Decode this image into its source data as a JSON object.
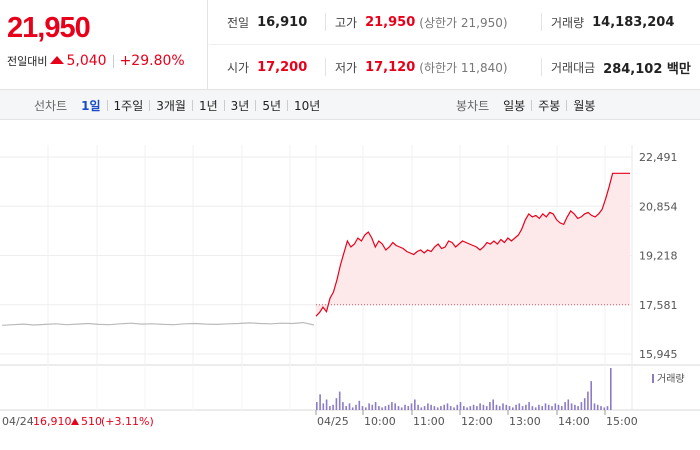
{
  "quote": {
    "price": "21,950",
    "change_label": "전일대비",
    "change_value": "5,040",
    "change_pct": "+29.80%"
  },
  "stats": {
    "prev_close": {
      "label": "전일",
      "value": "16,910"
    },
    "high": {
      "label": "고가",
      "value": "21,950",
      "sub": "(상한가 21,950)"
    },
    "volume": {
      "label": "거래량",
      "value": "14,183,204"
    },
    "open": {
      "label": "시가",
      "value": "17,200"
    },
    "low": {
      "label": "저가",
      "value": "17,120",
      "sub": "(하한가 11,840)"
    },
    "trade_value": {
      "label": "거래대금",
      "value": "284,102 백만"
    }
  },
  "tabs": {
    "line_label": "선차트",
    "line": [
      "1일",
      "1주일",
      "3개월",
      "1년",
      "3년",
      "5년",
      "10년"
    ],
    "active": "1일",
    "candle_label": "봉차트",
    "candle": [
      "일봉",
      "주봉",
      "월봉"
    ]
  },
  "chart_data": {
    "type": "line",
    "y_ticks": [
      "22,491",
      "20,854",
      "19,218",
      "17,581",
      "15,945"
    ],
    "ylim": [
      15945,
      22491
    ],
    "x_ticks": [
      "04/25",
      "10:00",
      "11:00",
      "12:00",
      "13:00",
      "14:00",
      "15:00"
    ],
    "prev_day_label": "04/24",
    "prev_day_close": "16,910",
    "prev_day_change": "510",
    "prev_day_pct": "(+3.11%)",
    "volume_legend": "거래량",
    "colors": {
      "today_line": "#e8001b",
      "today_fill": "#fde8ea",
      "prev_line": "#bbbbbb",
      "volume": "#8c7bc6"
    },
    "prev_day_series": [
      16900,
      16920,
      16940,
      16910,
      16930,
      16950,
      16920,
      16940,
      16960,
      16930,
      16920,
      16950,
      16970,
      16940,
      16950,
      16930,
      16920,
      16950,
      16960,
      16940,
      16930,
      16950,
      16960,
      16980,
      16960,
      16950,
      16970,
      16960,
      16990,
      16910
    ],
    "today_series": [
      17200,
      17320,
      17500,
      17350,
      17800,
      18000,
      18400,
      18900,
      19300,
      19700,
      19500,
      19600,
      19800,
      19700,
      19900,
      20000,
      19800,
      19500,
      19700,
      19600,
      19400,
      19500,
      19650,
      19550,
      19500,
      19450,
      19350,
      19300,
      19250,
      19350,
      19400,
      19300,
      19400,
      19350,
      19500,
      19600,
      19450,
      19500,
      19700,
      19650,
      19500,
      19600,
      19700,
      19650,
      19600,
      19550,
      19500,
      19400,
      19500,
      19650,
      19600,
      19700,
      19600,
      19750,
      19650,
      19800,
      19700,
      19800,
      19900,
      20100,
      20400,
      20600,
      20500,
      20550,
      20450,
      20600,
      20500,
      20650,
      20600,
      20400,
      20300,
      20250,
      20500,
      20700,
      20600,
      20450,
      20500,
      20600,
      20650,
      20550,
      20500,
      20600,
      20750,
      21100,
      21500,
      21950,
      21950,
      21950,
      21950,
      21950,
      21950
    ],
    "volume_series": [
      6,
      12,
      5,
      8,
      3,
      4,
      9,
      14,
      6,
      3,
      5,
      2,
      4,
      7,
      3,
      2,
      5,
      4,
      6,
      3,
      2,
      3,
      4,
      6,
      5,
      3,
      2,
      4,
      3,
      5,
      8,
      4,
      2,
      3,
      5,
      4,
      3,
      2,
      3,
      4,
      5,
      3,
      2,
      4,
      6,
      3,
      2,
      3,
      4,
      3,
      5,
      4,
      3,
      6,
      8,
      4,
      3,
      5,
      4,
      3,
      2,
      4,
      5,
      3,
      4,
      6,
      3,
      2,
      4,
      3,
      5,
      4,
      3,
      5,
      4,
      3,
      6,
      8,
      5,
      4,
      3,
      6,
      9,
      14,
      22,
      5,
      4,
      3,
      2,
      3,
      32
    ]
  }
}
